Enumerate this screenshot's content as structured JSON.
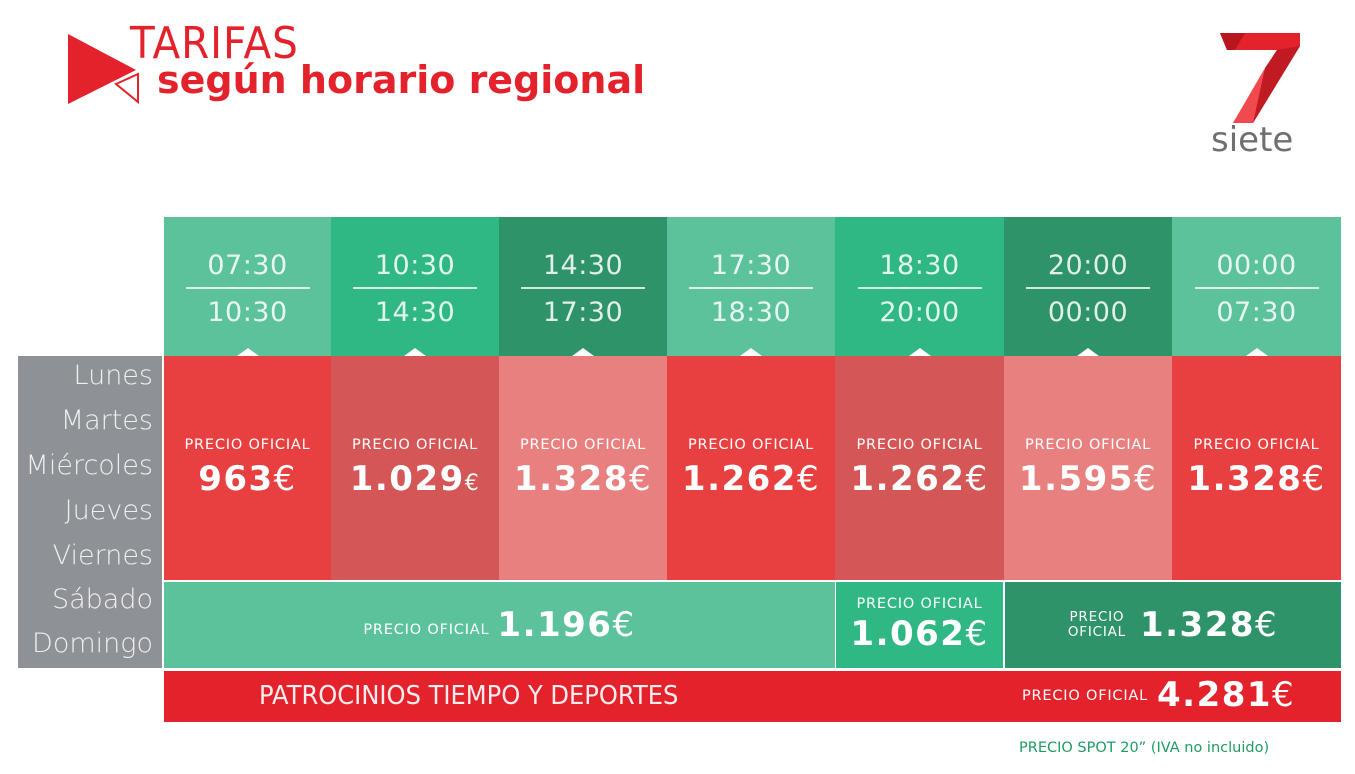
{
  "header": {
    "title_line1": "TARIFAS",
    "title_line2": "según horario regional",
    "brand_name": "siete"
  },
  "colors": {
    "brand_red": "#e3222c",
    "green_light": "#5cc29c",
    "green_mid": "#2fb884",
    "green_dark": "#2e9368",
    "red_1": "#e84040",
    "red_2": "#d55656",
    "red_3": "#e88080",
    "days_gray": "#8e9196"
  },
  "time_slots": [
    {
      "from": "07:30",
      "to": "10:30"
    },
    {
      "from": "10:30",
      "to": "14:30"
    },
    {
      "from": "14:30",
      "to": "17:30"
    },
    {
      "from": "17:30",
      "to": "18:30"
    },
    {
      "from": "18:30",
      "to": "20:00"
    },
    {
      "from": "20:00",
      "to": "00:00"
    },
    {
      "from": "00:00",
      "to": "07:30"
    }
  ],
  "days": [
    "Lunes",
    "Martes",
    "Miércoles",
    "Jueves",
    "Viernes",
    "Sábado",
    "Domingo"
  ],
  "weekday_prices": [
    {
      "label": "PRECIO OFICIAL",
      "value": "963",
      "currency": "€"
    },
    {
      "label": "PRECIO OFICIAL",
      "value": "1.029",
      "currency": "€"
    },
    {
      "label": "PRECIO OFICIAL",
      "value": "1.328",
      "currency": "€"
    },
    {
      "label": "PRECIO OFICIAL",
      "value": "1.262",
      "currency": "€"
    },
    {
      "label": "PRECIO OFICIAL",
      "value": "1.262",
      "currency": "€"
    },
    {
      "label": "PRECIO OFICIAL",
      "value": "1.595",
      "currency": "€"
    },
    {
      "label": "PRECIO OFICIAL",
      "value": "1.328",
      "currency": "€"
    }
  ],
  "weekend_prices": [
    {
      "label": "PRECIO OFICIAL",
      "value": "1.196",
      "currency": "€"
    },
    {
      "label": "PRECIO OFICIAL",
      "value": "1.062",
      "currency": "€"
    },
    {
      "label_line1": "PRECIO",
      "label_line2": "OFICIAL",
      "value": "1.328",
      "currency": "€"
    }
  ],
  "sponsorship": {
    "label": "PATROCINIOS TIEMPO Y DEPORTES",
    "price_label": "PRECIO OFICIAL",
    "value": "4.281",
    "currency": "€"
  },
  "footnote": "PRECIO SPOT 20” (IVA no incluido)"
}
